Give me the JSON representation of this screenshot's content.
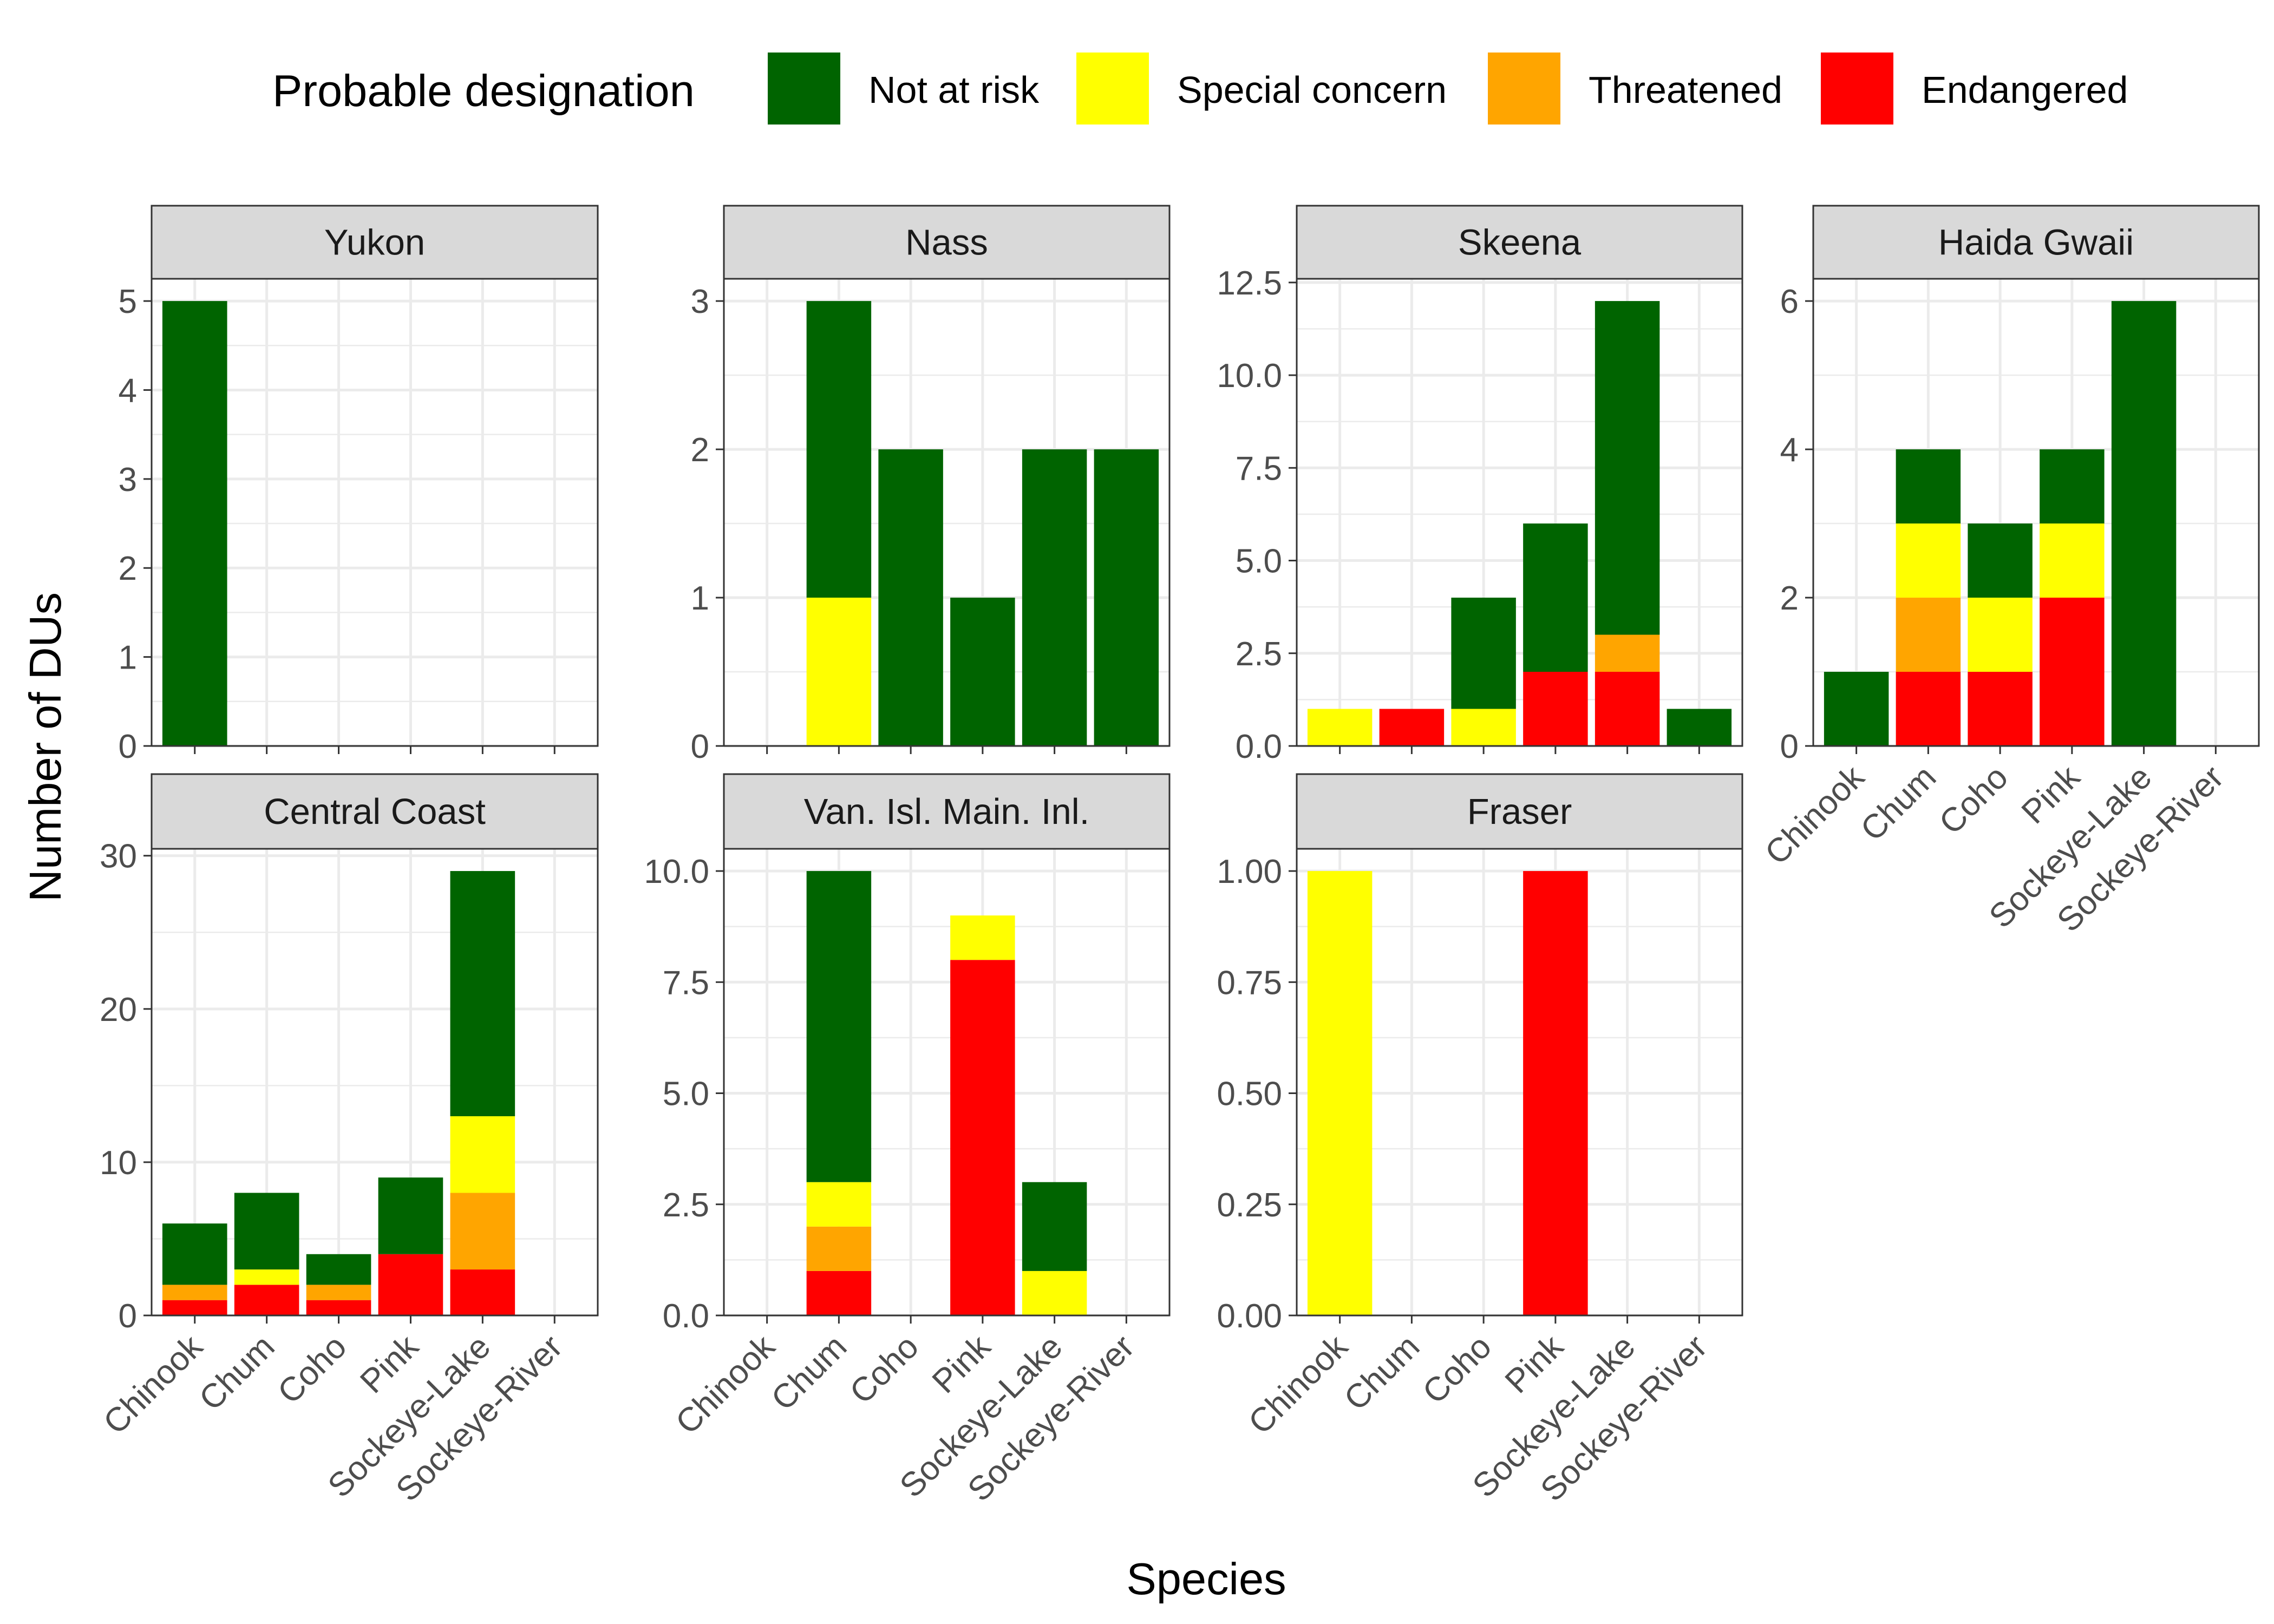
{
  "chart_data": {
    "type": "bar",
    "stacked": true,
    "xlabel": "Species",
    "ylabel": "Number of DUs",
    "legend": {
      "title": "Probable designation",
      "placement": "top",
      "items": [
        {
          "name": "Not at risk",
          "color": "#006400"
        },
        {
          "name": "Special concern",
          "color": "#FFFF00"
        },
        {
          "name": "Threatened",
          "color": "#FFA500"
        },
        {
          "name": "Endangered",
          "color": "#FF0000"
        }
      ]
    },
    "stack_order_bottom_to_top": [
      "Endangered",
      "Threatened",
      "Special concern",
      "Not at risk"
    ],
    "categories": [
      "Chinook",
      "Chum",
      "Coho",
      "Pink",
      "Sockeye-Lake",
      "Sockeye-River"
    ],
    "grid": true,
    "facets": [
      {
        "name": "Yukon",
        "ylim": [
          0,
          5.25
        ],
        "yticks": [
          0,
          1,
          2,
          3,
          4,
          5
        ],
        "ytick_labels": [
          "0",
          "1",
          "2",
          "3",
          "4",
          "5"
        ],
        "show_x_labels": false,
        "series": [
          {
            "name": "Not at risk",
            "values": [
              5,
              0,
              0,
              0,
              0,
              0
            ]
          },
          {
            "name": "Special concern",
            "values": [
              0,
              0,
              0,
              0,
              0,
              0
            ]
          },
          {
            "name": "Threatened",
            "values": [
              0,
              0,
              0,
              0,
              0,
              0
            ]
          },
          {
            "name": "Endangered",
            "values": [
              0,
              0,
              0,
              0,
              0,
              0
            ]
          }
        ]
      },
      {
        "name": "Nass",
        "ylim": [
          0,
          3.15
        ],
        "yticks": [
          0,
          1,
          2,
          3
        ],
        "ytick_labels": [
          "0",
          "1",
          "2",
          "3"
        ],
        "show_x_labels": false,
        "series": [
          {
            "name": "Not at risk",
            "values": [
              0,
              2,
              2,
              1,
              2,
              2
            ]
          },
          {
            "name": "Special concern",
            "values": [
              0,
              1,
              0,
              0,
              0,
              0
            ]
          },
          {
            "name": "Threatened",
            "values": [
              0,
              0,
              0,
              0,
              0,
              0
            ]
          },
          {
            "name": "Endangered",
            "values": [
              0,
              0,
              0,
              0,
              0,
              0
            ]
          }
        ]
      },
      {
        "name": "Skeena",
        "ylim": [
          0,
          12.6
        ],
        "yticks": [
          0,
          2.5,
          5,
          7.5,
          10,
          12.5
        ],
        "ytick_labels": [
          "0.0",
          "2.5",
          "5.0",
          "7.5",
          "10.0",
          "12.5"
        ],
        "show_x_labels": false,
        "series": [
          {
            "name": "Not at risk",
            "values": [
              0,
              0,
              3,
              4,
              9,
              1
            ]
          },
          {
            "name": "Special concern",
            "values": [
              1,
              0,
              1,
              0,
              0,
              0
            ]
          },
          {
            "name": "Threatened",
            "values": [
              0,
              0,
              0,
              0,
              1,
              0
            ]
          },
          {
            "name": "Endangered",
            "values": [
              0,
              1,
              0,
              2,
              2,
              0
            ]
          }
        ]
      },
      {
        "name": "Haida Gwaii",
        "ylim": [
          0,
          6.3
        ],
        "yticks": [
          0,
          2,
          4,
          6
        ],
        "ytick_labels": [
          "0",
          "2",
          "4",
          "6"
        ],
        "show_x_labels": true,
        "series": [
          {
            "name": "Not at risk",
            "values": [
              1,
              1,
              1,
              1,
              6,
              0
            ]
          },
          {
            "name": "Special concern",
            "values": [
              0,
              1,
              1,
              1,
              0,
              0
            ]
          },
          {
            "name": "Threatened",
            "values": [
              0,
              1,
              0,
              0,
              0,
              0
            ]
          },
          {
            "name": "Endangered",
            "values": [
              0,
              1,
              1,
              2,
              0,
              0
            ]
          }
        ]
      },
      {
        "name": "Central Coast",
        "ylim": [
          0,
          30.45
        ],
        "yticks": [
          0,
          10,
          20,
          30
        ],
        "ytick_labels": [
          "0",
          "10",
          "20",
          "30"
        ],
        "show_x_labels": true,
        "series": [
          {
            "name": "Not at risk",
            "values": [
              4,
              5,
              2,
              5,
              16,
              0
            ]
          },
          {
            "name": "Special concern",
            "values": [
              0,
              1,
              0,
              0,
              5,
              0
            ]
          },
          {
            "name": "Threatened",
            "values": [
              1,
              0,
              1,
              0,
              5,
              0
            ]
          },
          {
            "name": "Endangered",
            "values": [
              1,
              2,
              1,
              4,
              3,
              0
            ]
          }
        ]
      },
      {
        "name": "Van. Isl. Main. Inl.",
        "ylim": [
          0,
          10.5
        ],
        "yticks": [
          0,
          2.5,
          5,
          7.5,
          10
        ],
        "ytick_labels": [
          "0.0",
          "2.5",
          "5.0",
          "7.5",
          "10.0"
        ],
        "show_x_labels": true,
        "series": [
          {
            "name": "Not at risk",
            "values": [
              0,
              7,
              0,
              0,
              2,
              0
            ]
          },
          {
            "name": "Special concern",
            "values": [
              0,
              1,
              0,
              1,
              1,
              0
            ]
          },
          {
            "name": "Threatened",
            "values": [
              0,
              1,
              0,
              0,
              0,
              0
            ]
          },
          {
            "name": "Endangered",
            "values": [
              0,
              1,
              0,
              8,
              0,
              0
            ]
          }
        ]
      },
      {
        "name": "Fraser",
        "ylim": [
          0,
          1.05
        ],
        "yticks": [
          0,
          0.25,
          0.5,
          0.75,
          1
        ],
        "ytick_labels": [
          "0.00",
          "0.25",
          "0.50",
          "0.75",
          "1.00"
        ],
        "show_x_labels": true,
        "series": [
          {
            "name": "Not at risk",
            "values": [
              0,
              0,
              0,
              0,
              0,
              0
            ]
          },
          {
            "name": "Special concern",
            "values": [
              1,
              0,
              0,
              0,
              0,
              0
            ]
          },
          {
            "name": "Threatened",
            "values": [
              0,
              0,
              0,
              0,
              0,
              0
            ]
          },
          {
            "name": "Endangered",
            "values": [
              0,
              0,
              0,
              1,
              0,
              0
            ]
          }
        ]
      }
    ]
  }
}
